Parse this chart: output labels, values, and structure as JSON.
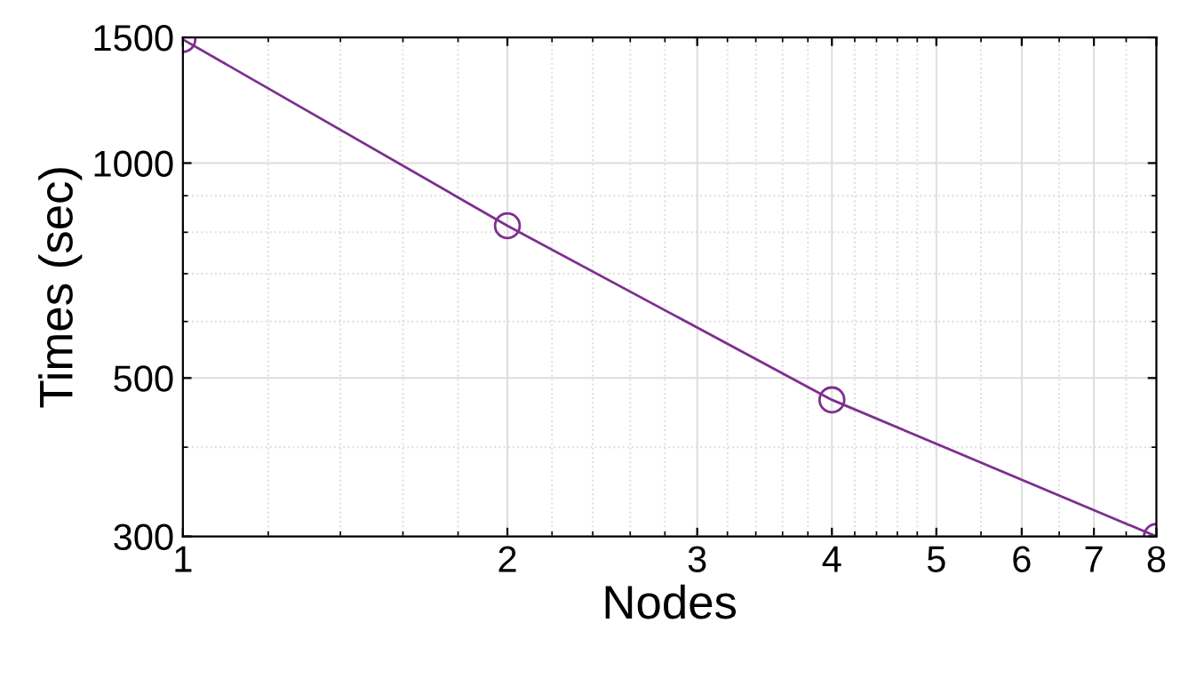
{
  "chart_data": {
    "type": "line",
    "xlabel": "Nodes",
    "ylabel": "Times (sec)",
    "log": "xy",
    "x": [
      1,
      2,
      4,
      8
    ],
    "series": [
      {
        "color": "#7e2f8e",
        "values": [
          1490,
          817,
          466,
          300
        ]
      }
    ],
    "xlim": [
      1,
      8
    ],
    "xticks": [
      1,
      2,
      3,
      4,
      5,
      6,
      7,
      8
    ],
    "ylim": [
      300,
      1500
    ],
    "yticks": [
      300,
      500,
      1000,
      1500
    ],
    "grid": true,
    "marker": "circle",
    "line_style": "solid"
  }
}
